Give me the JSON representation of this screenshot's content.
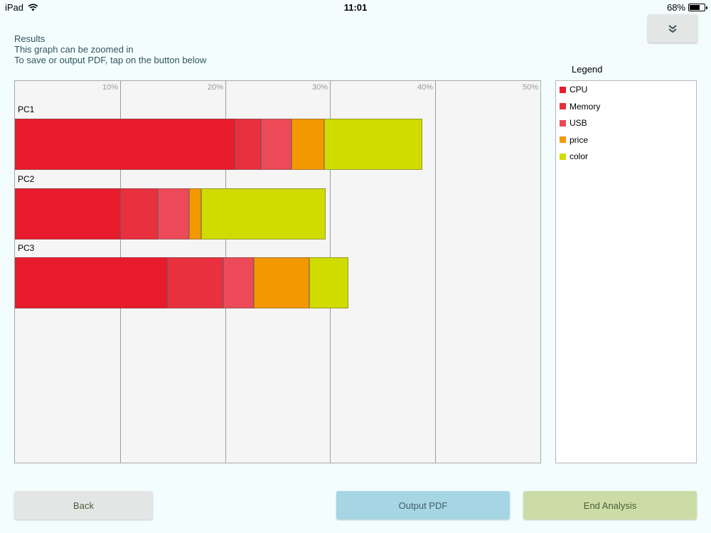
{
  "status_bar": {
    "device": "iPad",
    "time": "11:01",
    "battery": "68%",
    "battery_level": 0.68
  },
  "intro": {
    "line1": "Results",
    "line2": "This graph can be zoomed in",
    "line3": "To save or output PDF, tap on the button below"
  },
  "legend": {
    "title": "Legend",
    "items": [
      {
        "label": "CPU",
        "color": "#e81b2c"
      },
      {
        "label": "Memory",
        "color": "#e8303f"
      },
      {
        "label": "USB",
        "color": "#ec4a58"
      },
      {
        "label": "price",
        "color": "#f39800"
      },
      {
        "label": "color",
        "color": "#d0dc00"
      }
    ]
  },
  "chart_data": {
    "type": "bar",
    "orientation": "horizontal",
    "stacked": true,
    "categories": [
      "PC1",
      "PC2",
      "PC3"
    ],
    "x_ticks": [
      "10%",
      "20%",
      "30%",
      "40%",
      "50%"
    ],
    "xlim": [
      0,
      50
    ],
    "series": [
      {
        "name": "CPU",
        "color": "#e81b2c",
        "values": [
          20.9,
          10,
          14.5
        ]
      },
      {
        "name": "Memory",
        "color": "#e8303f",
        "values": [
          2.5,
          3.6,
          5.3
        ]
      },
      {
        "name": "USB",
        "color": "#ec4a58",
        "values": [
          2.9,
          3,
          2.9
        ]
      },
      {
        "name": "price",
        "color": "#f39800",
        "values": [
          3.1,
          1.1,
          5.3
        ]
      },
      {
        "name": "color",
        "color": "#d0dc00",
        "values": [
          9.4,
          11.9,
          3.7
        ]
      }
    ]
  },
  "buttons": {
    "back": "Back",
    "output_pdf": "Output PDF",
    "end_analysis": "End Analysis"
  }
}
